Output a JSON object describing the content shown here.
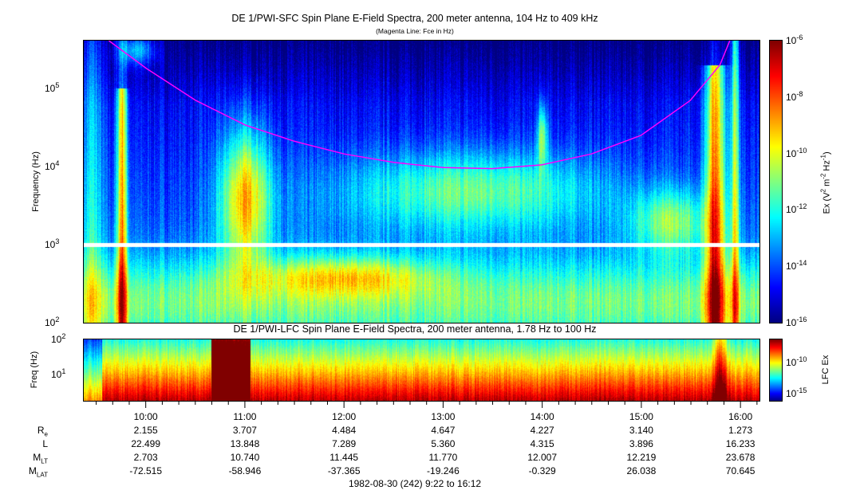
{
  "chart_data": [
    {
      "type": "heatmap",
      "title": "DE 1/PWI-SFC  Spin Plane E-Field Spectra, 200 meter antenna, 104 Hz to 409 kHz",
      "subtitle": "(Magenta Line: Fce in Hz)",
      "ylabel": "Frequency (Hz)",
      "ylim": [
        100,
        409000
      ],
      "yscale": "log",
      "y_ticks": [
        "10",
        "10",
        "10",
        "10"
      ],
      "y_tick_exps": [
        "2",
        "3",
        "4",
        "5"
      ],
      "colorbar": {
        "label": "Ex (V",
        "label_exp1": "2",
        "label_mid": " m",
        "label_exp2": "-2",
        "label_mid2": " Hz",
        "label_exp3": "-1",
        "label_end": ")",
        "ticks": [
          "10",
          "10",
          "10",
          "10",
          "10",
          "10"
        ],
        "tick_exps": [
          "-6",
          "-8",
          "-10",
          "-12",
          "-14",
          "-16"
        ]
      },
      "fce_line": {
        "color": "#ff00ff",
        "points": [
          [
            9.62,
            409000
          ],
          [
            10.0,
            180000
          ],
          [
            10.5,
            70000
          ],
          [
            11.0,
            34000
          ],
          [
            11.5,
            21000
          ],
          [
            12.0,
            14500
          ],
          [
            12.5,
            11300
          ],
          [
            13.0,
            9700
          ],
          [
            13.5,
            9400
          ],
          [
            14.0,
            10500
          ],
          [
            14.5,
            14500
          ],
          [
            15.0,
            25000
          ],
          [
            15.5,
            70000
          ],
          [
            15.8,
            200000
          ],
          [
            15.9,
            409000
          ]
        ]
      }
    },
    {
      "type": "heatmap",
      "title": "DE 1/PWI-LFC  Spin Plane E-Field Spectra, 200 meter antenna, 1.78 Hz to 100 Hz",
      "ylabel": "Freq (Hz)",
      "ylim": [
        1.78,
        100
      ],
      "yscale": "log",
      "y_ticks": [
        "10",
        "10"
      ],
      "y_tick_exps": [
        "2",
        "1"
      ],
      "colorbar": {
        "label": "LFC Ex",
        "ticks": [
          "10",
          "10"
        ],
        "tick_exps": [
          "-10",
          "-15"
        ]
      }
    }
  ],
  "time_axis": {
    "range": [
      "9:22",
      "16:12"
    ],
    "labels": [
      "10:00",
      "11:00",
      "12:00",
      "13:00",
      "14:00",
      "15:00",
      "16:00"
    ]
  },
  "ephemeris": [
    {
      "name": "R",
      "sub": "e",
      "values": [
        "2.155",
        "3.707",
        "4.484",
        "4.647",
        "4.227",
        "3.140",
        "1.273"
      ]
    },
    {
      "name": "L",
      "sub": "",
      "values": [
        "22.499",
        "13.848",
        "7.289",
        "5.360",
        "4.315",
        "3.896",
        "16.233"
      ]
    },
    {
      "name": "M",
      "sub": "LT",
      "values": [
        "2.703",
        "10.740",
        "11.445",
        "11.770",
        "12.007",
        "12.219",
        "23.678"
      ]
    },
    {
      "name": "M",
      "sub": "LAT",
      "values": [
        "-72.515",
        "-58.946",
        "-37.365",
        "-19.246",
        "-0.329",
        "26.038",
        "70.645"
      ]
    }
  ],
  "footer": "1982-08-30 (242) 9:22 to 16:12"
}
